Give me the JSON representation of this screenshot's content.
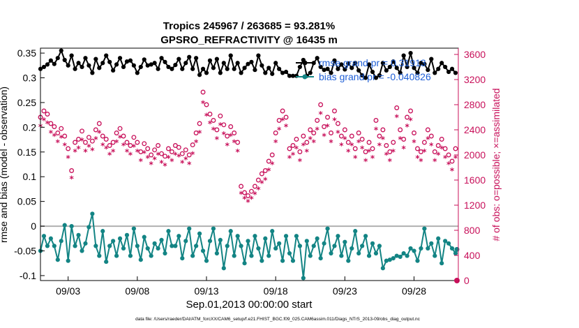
{
  "chart_data": {
    "type": "line",
    "title": "Tropics 245967 / 263685 = 93.281%",
    "subtitle": "GPSRO_REFRACTIVITY @ 16435 m",
    "xlabel": "Sep.01,2013 00:00:00 start",
    "ylabel": "rmse and bias (model - observation)",
    "ylabel_right": "# of obs: o=possible; ×=assimilated",
    "footer": "data file: /Users/raeder/DAI/ATM_forcXX/CAM6_setup/f.e21.FHIST_BGC.f09_025.CAM6assim.011/Diags_NTrS_2013-09/obs_diag_output.nc",
    "x_unit": "days",
    "xlim": [
      1.0,
      31.2
    ],
    "ylim": [
      -0.11,
      0.36
    ],
    "ylim_right": [
      0,
      3700
    ],
    "grid": false,
    "legend_position": "top-right",
    "x_ticks": [
      {
        "v": 3,
        "label": "09/03"
      },
      {
        "v": 8,
        "label": "09/08"
      },
      {
        "v": 13,
        "label": "09/13"
      },
      {
        "v": 18,
        "label": "09/18"
      },
      {
        "v": 23,
        "label": "09/23"
      },
      {
        "v": 28,
        "label": "09/28"
      }
    ],
    "y_ticks": [
      -0.1,
      -0.05,
      0,
      0.05,
      0.1,
      0.15,
      0.2,
      0.25,
      0.3,
      0.35
    ],
    "y_tick_labels": [
      "-0.1",
      "-0.05",
      "0",
      "0.05",
      "0.1",
      "0.15",
      "0.2",
      "0.25",
      "0.3",
      "0.35"
    ],
    "y_ticks_right": [
      0,
      400,
      800,
      1200,
      1600,
      2000,
      2400,
      2800,
      3200,
      3600
    ],
    "zero_line": 0,
    "colors": {
      "rmse": "#000000",
      "bias": "#138484",
      "possible": "#c8105a",
      "assimilated": "#c8105a",
      "legend_text": "#1f5fd6",
      "right_axis": "#c8105a",
      "zero_line": "#b0b0b0"
    },
    "series": [
      {
        "name": "rmse grand pr = 0.31913",
        "axis": "left",
        "x": [
          1.0,
          1.25,
          1.5,
          1.75,
          2.0,
          2.25,
          2.5,
          2.75,
          3.0,
          3.25,
          3.5,
          3.75,
          4.0,
          4.25,
          4.5,
          4.75,
          5.0,
          5.25,
          5.5,
          5.75,
          6.0,
          6.25,
          6.5,
          6.75,
          7.0,
          7.25,
          7.5,
          7.75,
          8.0,
          8.25,
          8.5,
          8.75,
          9.0,
          9.25,
          9.5,
          9.75,
          10.0,
          10.25,
          10.5,
          10.75,
          11.0,
          11.25,
          11.5,
          11.75,
          12.0,
          12.25,
          12.5,
          12.75,
          13.0,
          13.25,
          13.5,
          13.75,
          14.0,
          14.25,
          14.5,
          14.75,
          15.0,
          15.25,
          15.5,
          15.75,
          16.0,
          16.25,
          16.5,
          16.75,
          17.0,
          17.25,
          17.5,
          17.75,
          18.0,
          18.25,
          18.5,
          18.75,
          19.0,
          19.25,
          19.5,
          19.75,
          20.0,
          20.25,
          20.5,
          20.75,
          21.0,
          21.25,
          21.5,
          21.75,
          22.0,
          22.25,
          22.5,
          22.75,
          23.0,
          23.25,
          23.5,
          23.75,
          24.0,
          24.25,
          24.5,
          24.75,
          25.0,
          25.25,
          25.5,
          25.75,
          26.0,
          26.25,
          26.5,
          26.75,
          27.0,
          27.25,
          27.5,
          27.75,
          28.0,
          28.25,
          28.5,
          28.75,
          29.0,
          29.25,
          29.5,
          29.75,
          30.0,
          30.25,
          30.5,
          30.75,
          31.0
        ],
        "values": [
          0.318,
          0.322,
          0.327,
          0.335,
          0.328,
          0.34,
          0.355,
          0.336,
          0.325,
          0.345,
          0.318,
          0.33,
          0.322,
          0.34,
          0.325,
          0.31,
          0.338,
          0.32,
          0.33,
          0.345,
          0.332,
          0.315,
          0.327,
          0.34,
          0.322,
          0.333,
          0.335,
          0.325,
          0.31,
          0.322,
          0.337,
          0.325,
          0.327,
          0.33,
          0.318,
          0.34,
          0.332,
          0.322,
          0.318,
          0.326,
          0.338,
          0.318,
          0.33,
          0.342,
          0.318,
          0.34,
          0.306,
          0.318,
          0.31,
          0.335,
          0.32,
          0.338,
          0.31,
          0.33,
          0.318,
          0.345,
          0.318,
          0.33,
          0.31,
          0.32,
          0.328,
          0.332,
          0.316,
          0.345,
          0.325,
          0.31,
          0.32,
          0.308,
          0.33,
          0.318,
          0.31,
          0.312,
          0.304,
          0.304,
          0.304,
          0.322,
          0.336,
          0.304,
          0.31,
          0.33,
          0.34,
          0.322,
          0.316,
          0.318,
          0.31,
          0.335,
          0.318,
          0.327,
          0.317,
          0.329,
          0.32,
          0.33,
          0.315,
          0.305,
          0.3,
          0.327,
          0.312,
          0.3,
          0.305,
          0.33,
          0.315,
          0.322,
          0.333,
          0.32,
          0.31,
          0.345,
          0.322,
          0.35,
          0.32,
          0.31,
          0.33,
          0.328,
          0.316,
          0.338,
          0.31,
          0.318,
          0.33,
          0.322,
          0.312,
          0.318,
          0.31
        ]
      },
      {
        "name": "bias grand pr = -0.040826",
        "axis": "left",
        "x": [
          1.0,
          1.25,
          1.5,
          1.75,
          2.0,
          2.25,
          2.5,
          2.75,
          3.0,
          3.25,
          3.5,
          3.75,
          4.0,
          4.25,
          4.5,
          4.75,
          5.0,
          5.25,
          5.5,
          5.75,
          6.0,
          6.25,
          6.5,
          6.75,
          7.0,
          7.25,
          7.5,
          7.75,
          8.0,
          8.25,
          8.5,
          8.75,
          9.0,
          9.25,
          9.5,
          9.75,
          10.0,
          10.25,
          10.5,
          10.75,
          11.0,
          11.25,
          11.5,
          11.75,
          12.0,
          12.25,
          12.5,
          12.75,
          13.0,
          13.25,
          13.5,
          13.75,
          14.0,
          14.25,
          14.5,
          14.75,
          15.0,
          15.25,
          15.5,
          15.75,
          16.0,
          16.25,
          16.5,
          16.75,
          17.0,
          17.25,
          17.5,
          17.75,
          18.0,
          18.25,
          18.5,
          18.75,
          19.0,
          19.25,
          19.5,
          19.75,
          20.0,
          20.25,
          20.5,
          20.75,
          21.0,
          21.25,
          21.5,
          21.75,
          22.0,
          22.25,
          22.5,
          22.75,
          23.0,
          23.25,
          23.5,
          23.75,
          24.0,
          24.25,
          24.5,
          24.75,
          25.0,
          25.25,
          25.5,
          25.75,
          26.0,
          26.25,
          26.5,
          26.75,
          27.0,
          27.25,
          27.5,
          27.75,
          28.0,
          28.25,
          28.5,
          28.75,
          29.0,
          29.25,
          29.5,
          29.75,
          30.0,
          30.25,
          30.5,
          30.75,
          31.0
        ],
        "values": [
          -0.05,
          -0.02,
          -0.04,
          -0.025,
          -0.04,
          -0.068,
          -0.03,
          0.002,
          -0.07,
          0.0,
          -0.04,
          -0.018,
          -0.05,
          -0.035,
          -0.002,
          0.025,
          -0.04,
          -0.06,
          -0.01,
          -0.072,
          -0.04,
          -0.03,
          -0.06,
          -0.025,
          -0.045,
          -0.018,
          -0.06,
          -0.005,
          -0.04,
          -0.068,
          -0.022,
          -0.045,
          -0.06,
          -0.035,
          -0.045,
          -0.028,
          -0.055,
          -0.01,
          -0.04,
          -0.04,
          -0.02,
          -0.065,
          -0.03,
          -0.005,
          -0.06,
          -0.04,
          -0.015,
          -0.05,
          -0.07,
          -0.03,
          -0.005,
          -0.055,
          -0.028,
          -0.085,
          -0.04,
          -0.01,
          -0.06,
          -0.02,
          -0.04,
          -0.075,
          -0.03,
          -0.06,
          -0.02,
          -0.045,
          -0.07,
          -0.025,
          -0.06,
          -0.01,
          -0.045,
          -0.035,
          -0.07,
          -0.02,
          -0.055,
          -0.07,
          -0.02,
          -0.04,
          -0.105,
          -0.03,
          -0.06,
          -0.04,
          -0.025,
          -0.065,
          -0.035,
          -0.005,
          -0.055,
          -0.04,
          -0.02,
          -0.06,
          -0.032,
          -0.07,
          -0.045,
          -0.01,
          -0.055,
          -0.04,
          -0.02,
          -0.06,
          -0.035,
          -0.055,
          -0.04,
          -0.085,
          -0.07,
          -0.068,
          -0.065,
          -0.06,
          -0.062,
          -0.055,
          -0.06,
          -0.045,
          -0.05,
          -0.07,
          -0.045,
          -0.005,
          -0.045,
          -0.035,
          -0.06,
          -0.025,
          -0.075,
          -0.03,
          -0.035,
          -0.045,
          -0.055
        ]
      },
      {
        "name": "possible",
        "axis": "right",
        "x": [
          1.0,
          1.25,
          1.5,
          1.75,
          2.0,
          2.25,
          2.5,
          2.75,
          3.0,
          3.25,
          3.5,
          3.75,
          4.0,
          4.25,
          4.5,
          4.75,
          5.0,
          5.25,
          5.5,
          5.75,
          6.0,
          6.25,
          6.5,
          6.75,
          7.0,
          7.25,
          7.5,
          7.75,
          8.0,
          8.25,
          8.5,
          8.75,
          9.0,
          9.25,
          9.5,
          9.75,
          10.0,
          10.25,
          10.5,
          10.75,
          11.0,
          11.25,
          11.5,
          11.75,
          12.0,
          12.25,
          12.5,
          12.75,
          13.0,
          13.25,
          13.5,
          13.75,
          14.0,
          14.25,
          14.5,
          14.75,
          15.0,
          15.25,
          15.5,
          15.75,
          16.0,
          16.25,
          16.5,
          16.75,
          17.0,
          17.25,
          17.5,
          17.75,
          18.0,
          18.25,
          18.5,
          18.75,
          19.0,
          19.25,
          19.5,
          19.75,
          20.0,
          20.25,
          20.5,
          20.75,
          21.0,
          21.25,
          21.5,
          21.75,
          22.0,
          22.25,
          22.5,
          22.75,
          23.0,
          23.25,
          23.5,
          23.75,
          24.0,
          24.25,
          24.5,
          24.75,
          25.0,
          25.25,
          25.5,
          25.75,
          26.0,
          26.25,
          26.5,
          26.75,
          27.0,
          27.25,
          27.5,
          27.75,
          28.0,
          28.25,
          28.5,
          28.75,
          29.0,
          29.25,
          29.5,
          29.75,
          30.0,
          30.25,
          30.5,
          30.75,
          31.0
        ],
        "values": [
          2600,
          2700,
          2650,
          2500,
          2450,
          2350,
          2420,
          2300,
          2100,
          1750,
          2200,
          2250,
          2380,
          2200,
          2280,
          2220,
          2400,
          2500,
          2300,
          2250,
          2150,
          2200,
          2350,
          2420,
          2300,
          2200,
          2150,
          2280,
          2200,
          2050,
          2180,
          2100,
          2000,
          2080,
          2150,
          2020,
          1980,
          2100,
          2050,
          2150,
          2120,
          2020,
          2080,
          2000,
          2160,
          2350,
          2500,
          3000,
          2800,
          2650,
          2550,
          2400,
          2620,
          2480,
          2300,
          2450,
          2350,
          2200,
          1500,
          1400,
          1350,
          1420,
          1500,
          1600,
          1700,
          1750,
          1900,
          2000,
          2350,
          2550,
          2700,
          2600,
          2100,
          2150,
          2250,
          2050,
          2300,
          2200,
          2400,
          2350,
          2550,
          2800,
          2450,
          2600,
          2350,
          2700,
          2500,
          2300,
          2400,
          2200,
          2300,
          2100,
          2350,
          2250,
          2050,
          2200,
          2100,
          2550,
          2300,
          2400,
          2150,
          2050,
          2200,
          2750,
          2400,
          2250,
          2600,
          2700,
          2350,
          2100,
          2050,
          2200,
          2400,
          2300,
          2050,
          2150,
          2250,
          2100,
          2000,
          1900,
          2100
        ]
      },
      {
        "name": "assimilated",
        "axis": "right",
        "x": [
          1.0,
          1.25,
          1.5,
          1.75,
          2.0,
          2.25,
          2.5,
          2.75,
          3.0,
          3.25,
          3.5,
          3.75,
          4.0,
          4.25,
          4.5,
          4.75,
          5.0,
          5.25,
          5.5,
          5.75,
          6.0,
          6.25,
          6.5,
          6.75,
          7.0,
          7.25,
          7.5,
          7.75,
          8.0,
          8.25,
          8.5,
          8.75,
          9.0,
          9.25,
          9.5,
          9.75,
          10.0,
          10.25,
          10.5,
          10.75,
          11.0,
          11.25,
          11.5,
          11.75,
          12.0,
          12.25,
          12.5,
          12.75,
          13.0,
          13.25,
          13.5,
          13.75,
          14.0,
          14.25,
          14.5,
          14.75,
          15.0,
          15.25,
          15.5,
          15.75,
          16.0,
          16.25,
          16.5,
          16.75,
          17.0,
          17.25,
          17.5,
          17.75,
          18.0,
          18.25,
          18.5,
          18.75,
          19.0,
          19.25,
          19.5,
          19.75,
          20.0,
          20.25,
          20.5,
          20.75,
          21.0,
          21.25,
          21.5,
          21.75,
          22.0,
          22.25,
          22.5,
          22.75,
          23.0,
          23.25,
          23.5,
          23.75,
          24.0,
          24.25,
          24.5,
          24.75,
          25.0,
          25.25,
          25.5,
          25.75,
          26.0,
          26.25,
          26.5,
          26.75,
          27.0,
          27.25,
          27.5,
          27.75,
          28.0,
          28.25,
          28.5,
          28.75,
          29.0,
          29.25,
          29.5,
          29.75,
          30.0,
          30.25,
          30.5,
          30.75,
          31.0
        ],
        "values": [
          2450,
          2550,
          2500,
          2350,
          2300,
          2200,
          2270,
          2150,
          1950,
          1620,
          2050,
          2100,
          2230,
          2050,
          2130,
          2070,
          2250,
          2350,
          2150,
          2100,
          2000,
          2050,
          2200,
          2270,
          2150,
          2050,
          2000,
          2130,
          2050,
          1900,
          2030,
          1950,
          1850,
          1930,
          2000,
          1870,
          1830,
          1950,
          1900,
          2000,
          1970,
          1870,
          1930,
          1850,
          2010,
          2200,
          2350,
          2820,
          2620,
          2500,
          2400,
          2250,
          2470,
          2330,
          2150,
          2300,
          2200,
          2050,
          1380,
          1300,
          1250,
          1300,
          1370,
          1450,
          1550,
          1600,
          1750,
          1850,
          2200,
          2400,
          2550,
          2450,
          1950,
          2000,
          2100,
          1900,
          2150,
          2050,
          2250,
          2200,
          2400,
          2650,
          2300,
          2450,
          2200,
          2550,
          2350,
          2150,
          2250,
          2050,
          2150,
          1950,
          2200,
          2100,
          1900,
          2050,
          1950,
          2400,
          2150,
          2250,
          2000,
          1900,
          2050,
          2600,
          2250,
          2100,
          2450,
          2550,
          2200,
          1950,
          1900,
          2050,
          2250,
          2150,
          1900,
          2000,
          2100,
          1950,
          1850,
          1750,
          1950
        ]
      }
    ],
    "end_markers": {
      "x": 31.1,
      "bias": -0.047,
      "count": 0
    }
  }
}
